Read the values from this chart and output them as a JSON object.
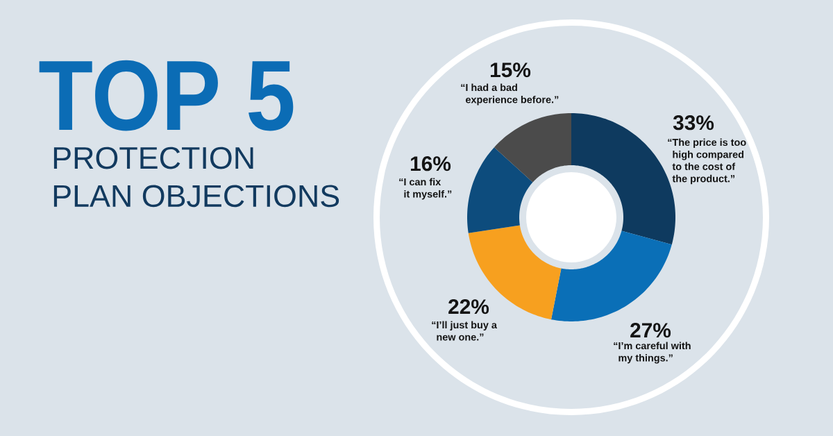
{
  "chart_data": {
    "type": "donut",
    "title": "TOP 5",
    "subtitle": "PROTECTION PLAN OBJECTIONS",
    "categories": [
      "“The price is too high compared to the cost of the product.”",
      "“I’m careful with my things.”",
      "“I’ll just buy a new one.”",
      "“I can fix it myself.”",
      "“I had a bad experience before.”"
    ],
    "values": [
      33,
      27,
      22,
      16,
      15
    ],
    "value_labels": [
      "33%",
      "27%",
      "22%",
      "16%",
      "15%"
    ],
    "colors": [
      "#0e3a5f",
      "#0a6fb7",
      "#f7a01f",
      "#0d4c7d",
      "#4b4b4b"
    ]
  }
}
